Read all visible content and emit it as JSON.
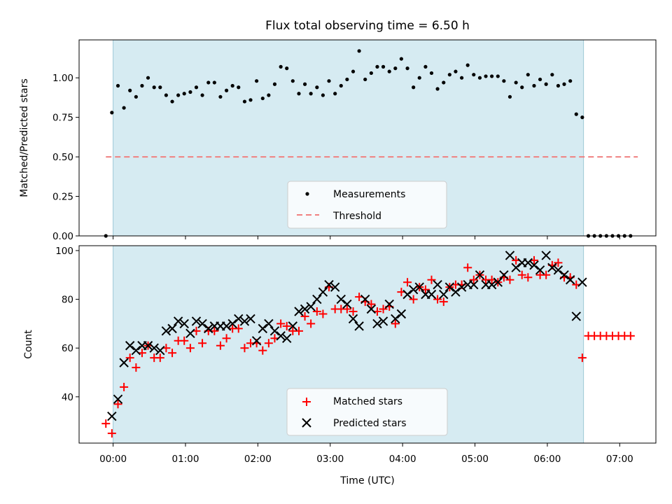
{
  "chart_data": [
    {
      "type": "scatter",
      "title": "Flux total observing time = 6.50 h",
      "xlabel": "",
      "ylabel": "Matched/Predicted stars",
      "xlim": [
        -0.47,
        7.5
      ],
      "ylim": [
        0,
        1.24
      ],
      "x_ticks": [
        0,
        1,
        2,
        3,
        4,
        5,
        6,
        7
      ],
      "y_ticks": [
        0.0,
        0.25,
        0.5,
        0.75,
        1.0
      ],
      "y_tick_labels": [
        "0.00",
        "0.25",
        "0.50",
        "0.75",
        "1.00"
      ],
      "grid": false,
      "legend_position": "lower-center",
      "observing_window": [
        0.0,
        6.5
      ],
      "threshold": {
        "name": "Threshold",
        "value": 0.5,
        "x_range": [
          -0.1,
          7.25
        ],
        "color": "#f08080",
        "style": "dashed"
      },
      "series": [
        {
          "name": "Measurements",
          "color": "#000000",
          "marker": "dot",
          "x": [
            -0.1,
            -0.017,
            0.067,
            0.15,
            0.233,
            0.317,
            0.4,
            0.483,
            0.567,
            0.65,
            0.733,
            0.817,
            0.9,
            0.983,
            1.067,
            1.15,
            1.233,
            1.317,
            1.4,
            1.483,
            1.567,
            1.65,
            1.733,
            1.817,
            1.9,
            1.983,
            2.067,
            2.15,
            2.233,
            2.317,
            2.4,
            2.483,
            2.567,
            2.65,
            2.733,
            2.817,
            2.9,
            2.983,
            3.067,
            3.15,
            3.233,
            3.317,
            3.4,
            3.483,
            3.567,
            3.65,
            3.733,
            3.817,
            3.9,
            3.983,
            4.067,
            4.15,
            4.233,
            4.317,
            4.4,
            4.483,
            4.567,
            4.65,
            4.733,
            4.817,
            4.9,
            4.983,
            5.067,
            5.15,
            5.233,
            5.317,
            5.4,
            5.483,
            5.567,
            5.65,
            5.733,
            5.817,
            5.9,
            5.983,
            6.067,
            6.15,
            6.233,
            6.317,
            6.4,
            6.483,
            6.567,
            6.65,
            6.733,
            6.817,
            6.9,
            6.983,
            7.067,
            7.15
          ],
          "y": [
            0.0,
            0.78,
            0.95,
            0.81,
            0.92,
            0.88,
            0.95,
            1.0,
            0.94,
            0.94,
            0.89,
            0.85,
            0.89,
            0.9,
            0.91,
            0.94,
            0.89,
            0.97,
            0.97,
            0.88,
            0.92,
            0.95,
            0.94,
            0.85,
            0.86,
            0.98,
            0.87,
            0.89,
            0.96,
            1.07,
            1.06,
            0.98,
            0.9,
            0.96,
            0.9,
            0.94,
            0.89,
            0.98,
            0.9,
            0.95,
            0.99,
            1.04,
            1.17,
            0.99,
            1.03,
            1.07,
            1.07,
            1.04,
            1.06,
            1.12,
            1.06,
            0.94,
            1.0,
            1.07,
            1.03,
            0.93,
            0.97,
            1.02,
            1.04,
            1.0,
            1.08,
            1.02,
            1.0,
            1.01,
            1.01,
            1.01,
            0.98,
            0.88,
            0.97,
            0.94,
            1.02,
            0.95,
            0.99,
            0.96,
            1.02,
            0.95,
            0.96,
            0.98,
            0.77,
            0.75,
            0.0,
            0.0,
            0.0,
            0.0,
            0.0,
            0.0,
            0.0,
            0.0
          ]
        }
      ]
    },
    {
      "type": "scatter",
      "title": "",
      "xlabel": "Time (UTC)",
      "ylabel": "Count",
      "xlim": [
        -0.47,
        7.5
      ],
      "ylim": [
        21,
        102
      ],
      "x_ticks": [
        0,
        1,
        2,
        3,
        4,
        5,
        6,
        7
      ],
      "x_tick_labels": [
        "00:00",
        "01:00",
        "02:00",
        "03:00",
        "04:00",
        "05:00",
        "06:00",
        "07:00"
      ],
      "y_ticks": [
        40,
        60,
        80,
        100
      ],
      "y_tick_labels": [
        "40",
        "60",
        "80",
        "100"
      ],
      "grid": false,
      "legend_position": "lower-center",
      "observing_window": [
        0.0,
        6.5
      ],
      "series": [
        {
          "name": "Matched stars",
          "color": "#ff0000",
          "marker": "plus",
          "x": [
            -0.1,
            -0.017,
            0.067,
            0.15,
            0.233,
            0.317,
            0.4,
            0.483,
            0.567,
            0.65,
            0.733,
            0.817,
            0.9,
            0.983,
            1.067,
            1.15,
            1.233,
            1.317,
            1.4,
            1.483,
            1.567,
            1.65,
            1.733,
            1.817,
            1.9,
            1.983,
            2.067,
            2.15,
            2.233,
            2.317,
            2.4,
            2.483,
            2.567,
            2.65,
            2.733,
            2.817,
            2.9,
            2.983,
            3.067,
            3.15,
            3.233,
            3.317,
            3.4,
            3.483,
            3.567,
            3.65,
            3.733,
            3.817,
            3.9,
            3.983,
            4.067,
            4.15,
            4.233,
            4.317,
            4.4,
            4.483,
            4.567,
            4.65,
            4.733,
            4.817,
            4.9,
            4.983,
            5.067,
            5.15,
            5.233,
            5.317,
            5.4,
            5.483,
            5.567,
            5.65,
            5.733,
            5.817,
            5.9,
            5.983,
            6.067,
            6.15,
            6.233,
            6.317,
            6.4,
            6.483,
            6.567,
            6.65,
            6.733,
            6.817,
            6.9,
            6.983,
            7.067,
            7.15
          ],
          "y": [
            29,
            25,
            37,
            44,
            56,
            52,
            58,
            61,
            56,
            56,
            60,
            58,
            63,
            63,
            60,
            67,
            62,
            67,
            67,
            61,
            64,
            68,
            68,
            60,
            62,
            62,
            59,
            62,
            64,
            70,
            69,
            67,
            67,
            73,
            70,
            75,
            74,
            85,
            76,
            76,
            76,
            75,
            81,
            79,
            78,
            75,
            76,
            77,
            70,
            83,
            87,
            80,
            85,
            84,
            88,
            80,
            79,
            85,
            86,
            86,
            93,
            88,
            90,
            88,
            88,
            87,
            89,
            88,
            96,
            90,
            89,
            96,
            90,
            90,
            94,
            95,
            89,
            89,
            86,
            56,
            65,
            65,
            65,
            65,
            65,
            65,
            65,
            65
          ]
        },
        {
          "name": "Predicted stars",
          "color": "#000000",
          "marker": "x",
          "x": [
            -0.017,
            0.067,
            0.15,
            0.233,
            0.317,
            0.4,
            0.483,
            0.567,
            0.65,
            0.733,
            0.817,
            0.9,
            0.983,
            1.067,
            1.15,
            1.233,
            1.317,
            1.4,
            1.483,
            1.567,
            1.65,
            1.733,
            1.817,
            1.9,
            1.983,
            2.067,
            2.15,
            2.233,
            2.317,
            2.4,
            2.483,
            2.567,
            2.65,
            2.733,
            2.817,
            2.9,
            2.983,
            3.067,
            3.15,
            3.233,
            3.317,
            3.4,
            3.483,
            3.567,
            3.65,
            3.733,
            3.817,
            3.9,
            3.983,
            4.067,
            4.15,
            4.233,
            4.317,
            4.4,
            4.483,
            4.567,
            4.65,
            4.733,
            4.817,
            4.9,
            4.983,
            5.067,
            5.15,
            5.233,
            5.317,
            5.4,
            5.483,
            5.567,
            5.65,
            5.733,
            5.817,
            5.9,
            5.983,
            6.067,
            6.15,
            6.233,
            6.317,
            6.4,
            6.483
          ],
          "y": [
            32,
            39,
            54,
            61,
            59,
            61,
            61,
            60,
            59,
            67,
            68,
            71,
            70,
            66,
            71,
            70,
            68,
            69,
            69,
            69,
            70,
            72,
            71,
            72,
            63,
            68,
            70,
            67,
            65,
            64,
            69,
            75,
            76,
            77,
            80,
            83,
            86,
            85,
            80,
            78,
            72,
            69,
            80,
            76,
            70,
            71,
            78,
            72,
            74,
            82,
            84,
            85,
            82,
            82,
            86,
            82,
            85,
            83,
            85,
            86,
            86,
            90,
            86,
            86,
            87,
            90,
            98,
            93,
            95,
            95,
            94,
            92,
            98,
            93,
            92,
            90,
            88,
            73,
            87
          ]
        }
      ]
    }
  ]
}
